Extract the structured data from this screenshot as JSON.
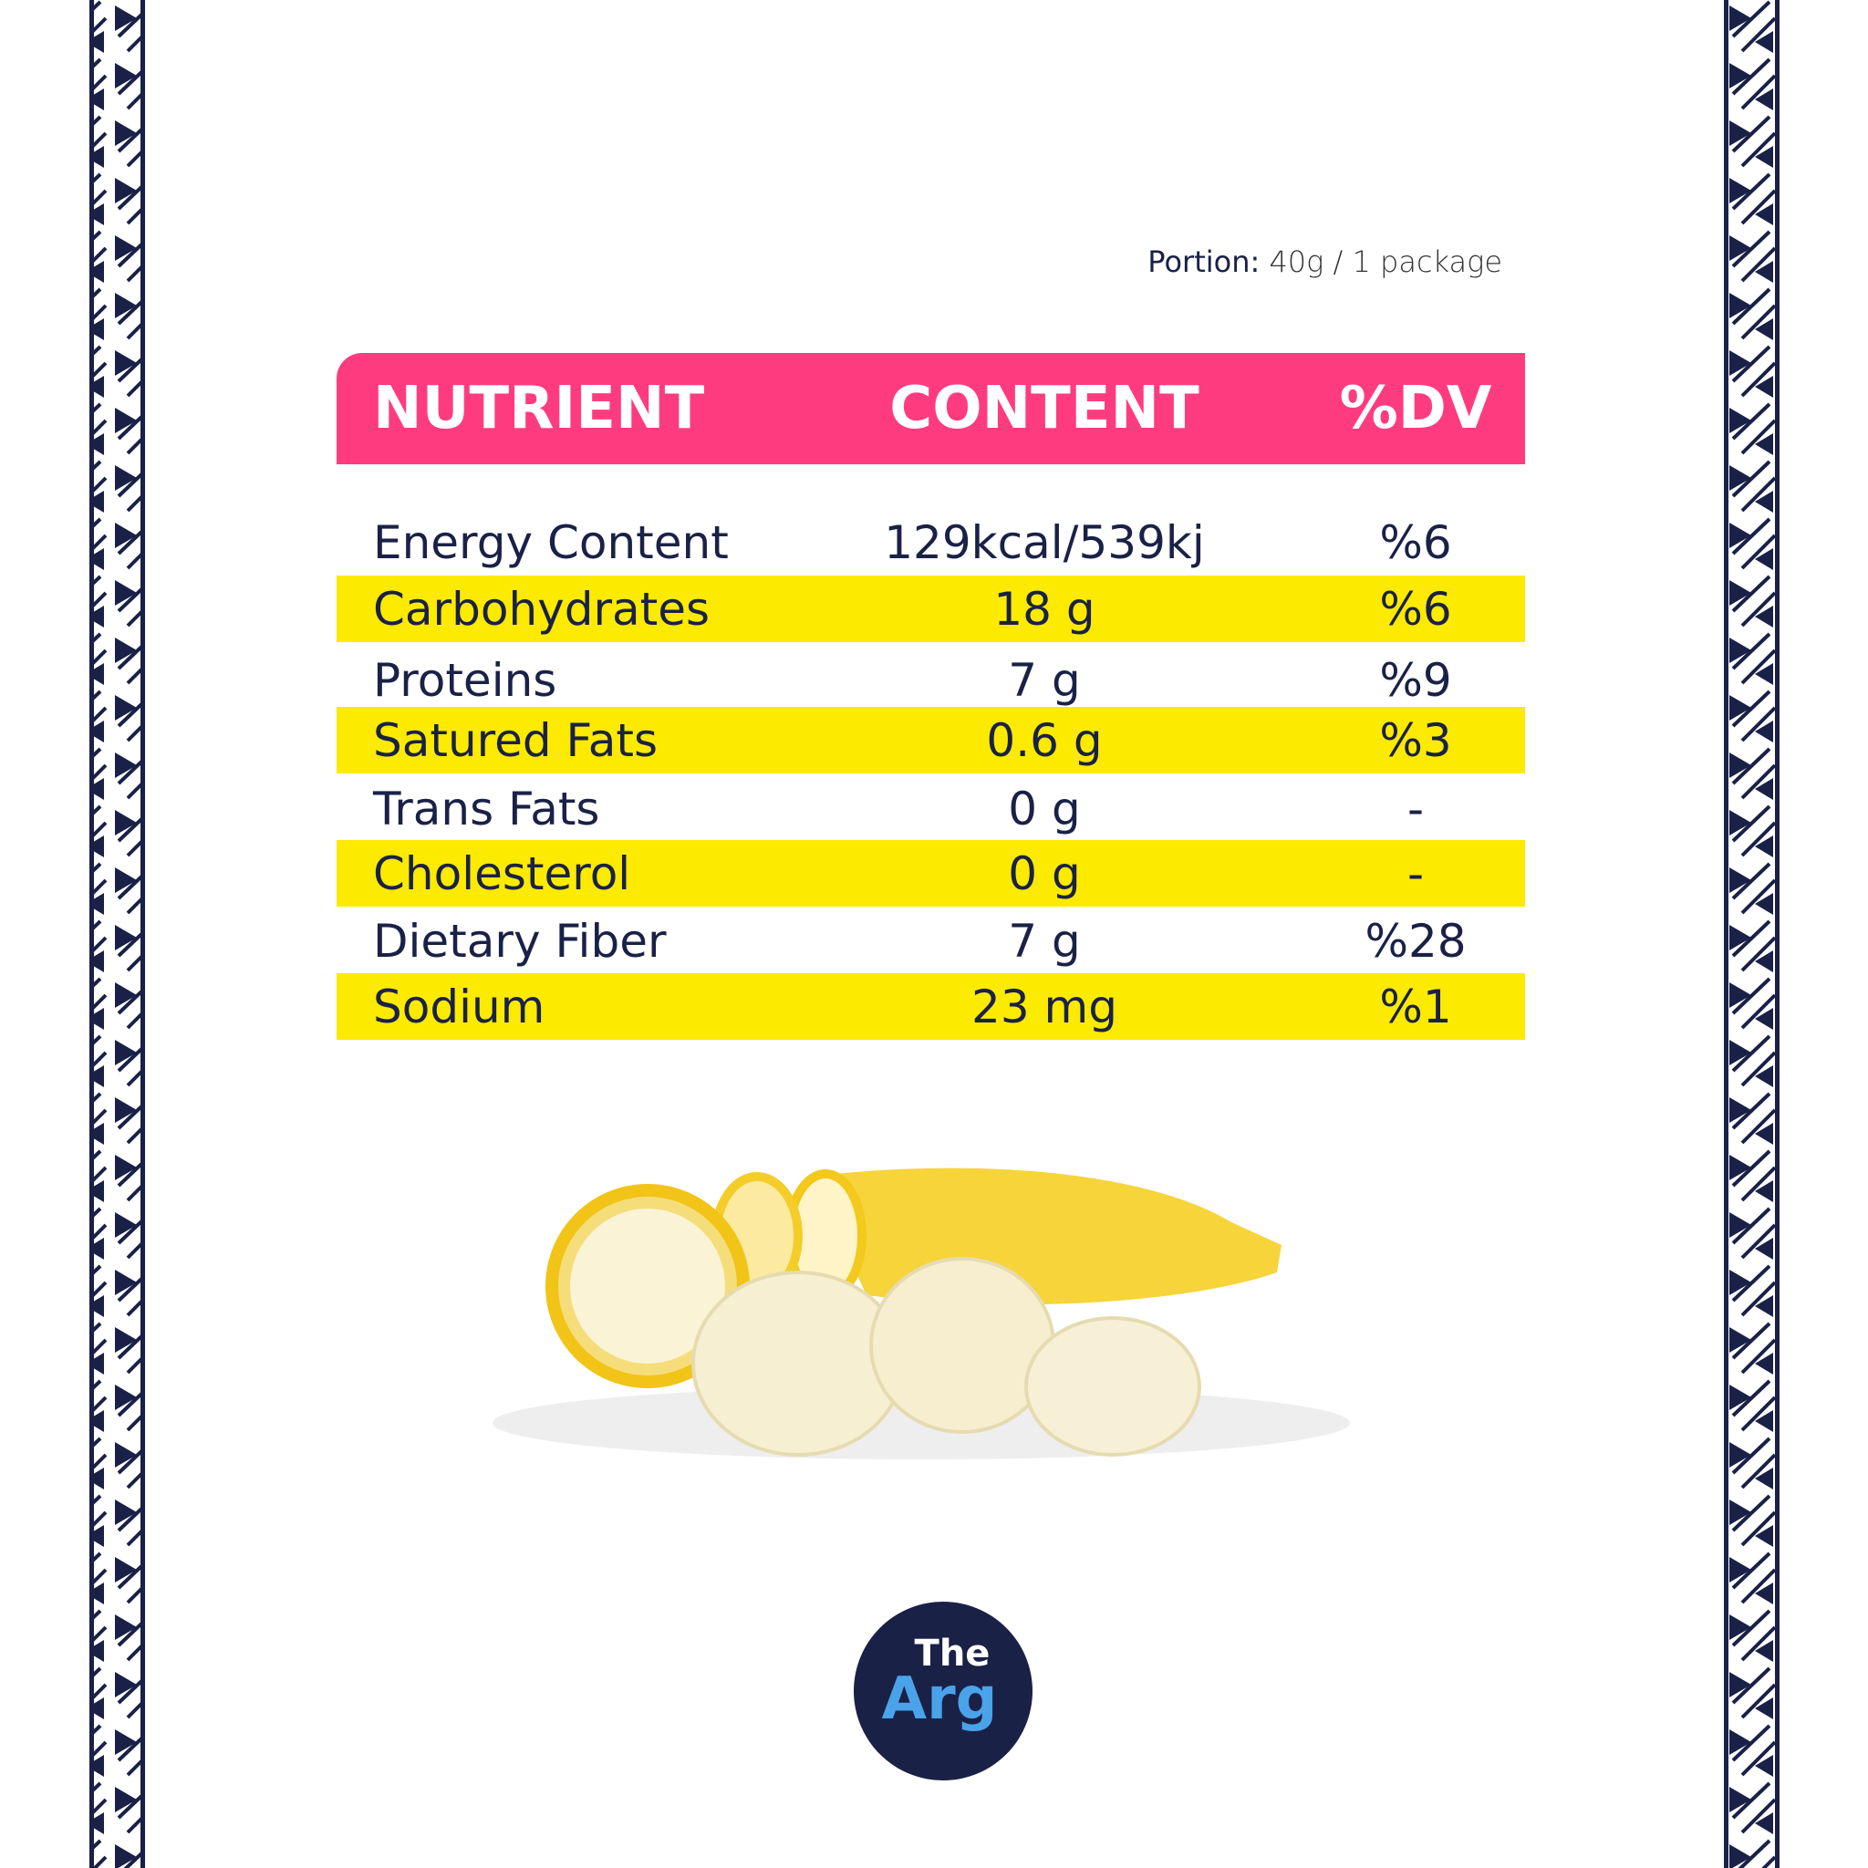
{
  "portion": {
    "label": "Portion:",
    "value": "40g / 1 package"
  },
  "table": {
    "headers": [
      "NUTRIENT",
      "CONTENT",
      "%DV"
    ],
    "rows": [
      [
        "Energy Content",
        "129kcal/539kj",
        "%6"
      ],
      [
        "Carbohydrates",
        "18 g",
        "%6"
      ],
      [
        "Proteins",
        "7 g",
        "%9"
      ],
      [
        "Satured Fats",
        "0.6 g",
        "%3"
      ],
      [
        "Trans Fats",
        "0 g",
        "-"
      ],
      [
        "Cholesterol",
        "0 g",
        "-"
      ],
      [
        "Dietary Fiber",
        "7 g",
        "%28"
      ],
      [
        "Sodium",
        "23 mg",
        "%1"
      ]
    ]
  },
  "logo": {
    "line1": "The",
    "line2": "Arg"
  }
}
